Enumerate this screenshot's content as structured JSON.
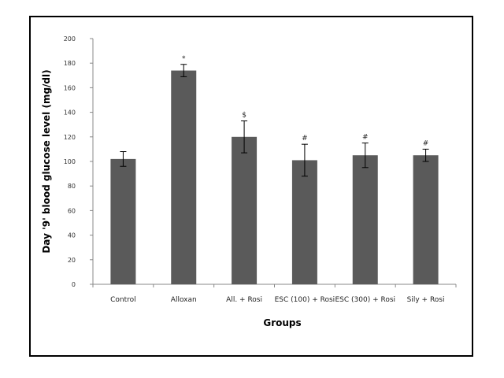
{
  "chart_data": {
    "type": "bar",
    "title": "",
    "xlabel": "Groups",
    "ylabel": "Day '9' blood glucose level (mg/dl)",
    "ylim": [
      0,
      200
    ],
    "yticks": [
      0,
      20,
      40,
      60,
      80,
      100,
      120,
      140,
      160,
      180,
      200
    ],
    "grid": false,
    "legend": "none",
    "categories": [
      "Control",
      "Alloxan",
      "All. + Rosi",
      "ESC (100) + Rosi",
      "ESC (300) + Rosi",
      "Sily + Rosi"
    ],
    "values": [
      102,
      174,
      120,
      101,
      105,
      105
    ],
    "errors": [
      6,
      5,
      13,
      13,
      10,
      5
    ],
    "annotations": [
      "",
      "*",
      "$",
      "#",
      "#",
      "#"
    ],
    "bar_color": "#5a5a5a"
  }
}
